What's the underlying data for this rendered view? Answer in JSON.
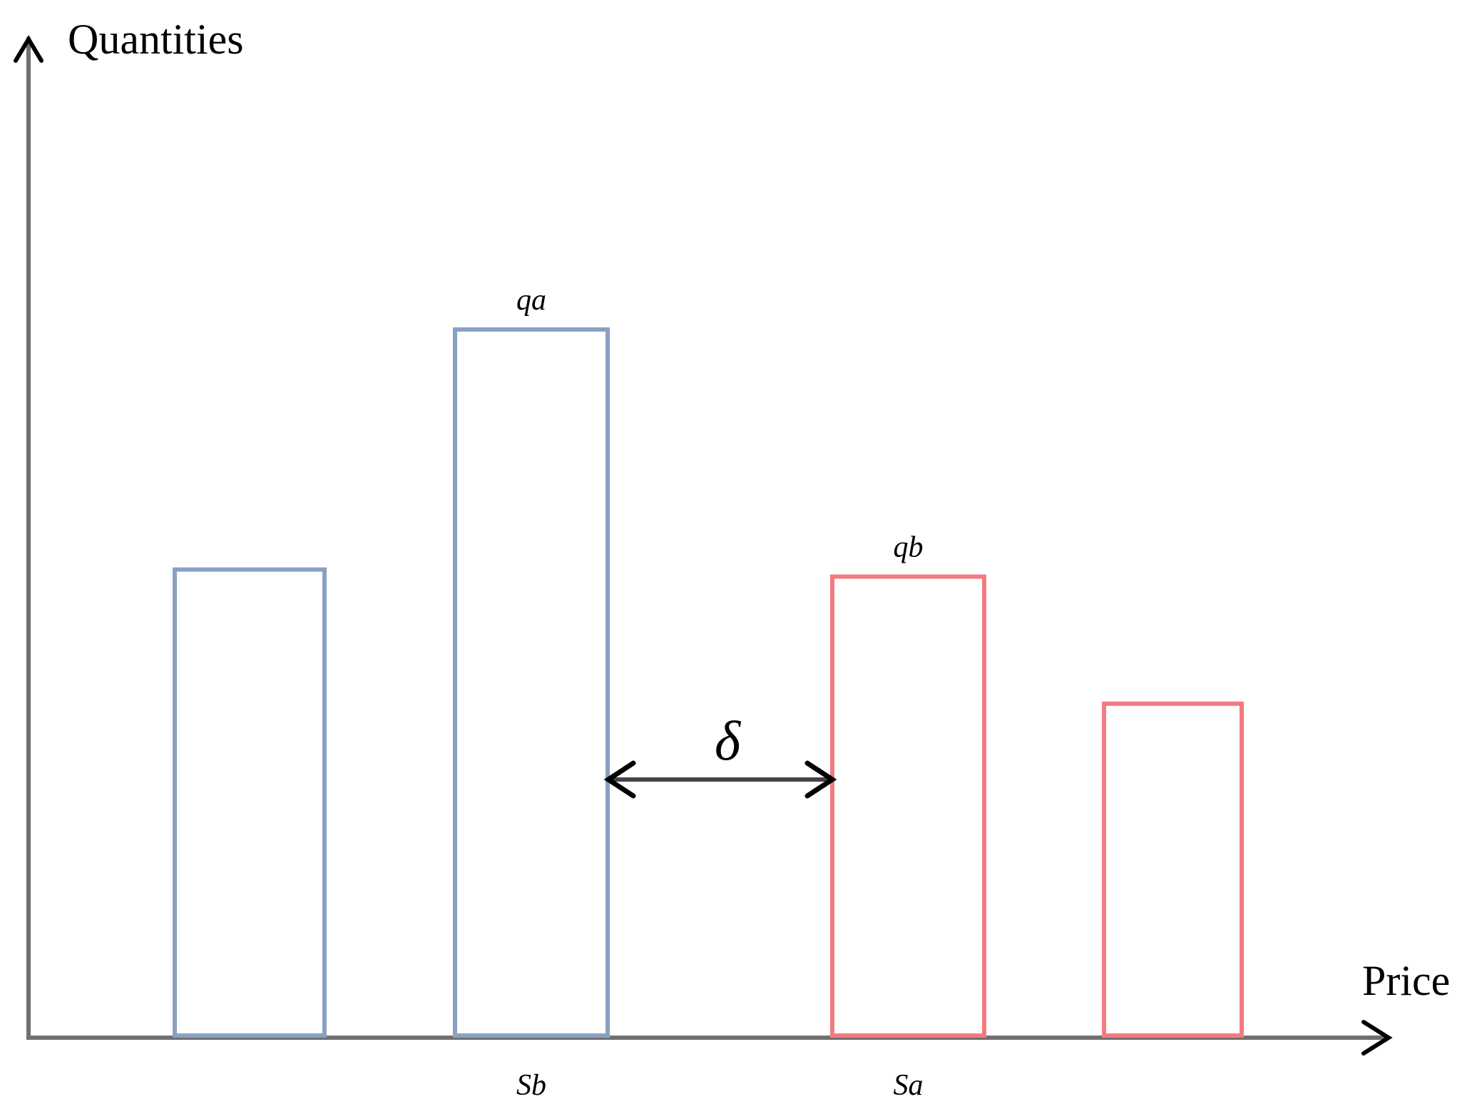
{
  "axes": {
    "y_title": "Quantities",
    "x_title": "Price"
  },
  "bars": [
    {
      "side": "bid",
      "value": 0.66,
      "top_label": "",
      "bottom_label": ""
    },
    {
      "side": "bid",
      "value": 1.0,
      "top_label": "qa",
      "bottom_label": "Sb"
    },
    {
      "side": "ask",
      "value": 0.65,
      "top_label": "qb",
      "bottom_label": "Sa"
    },
    {
      "side": "ask",
      "value": 0.47,
      "top_label": "",
      "bottom_label": ""
    }
  ],
  "spread": {
    "symbol": "δ"
  },
  "colors": {
    "bid": "#8aa0c4",
    "ask": "#f27b80",
    "axis": "#707070",
    "arrow": "#444444"
  }
}
